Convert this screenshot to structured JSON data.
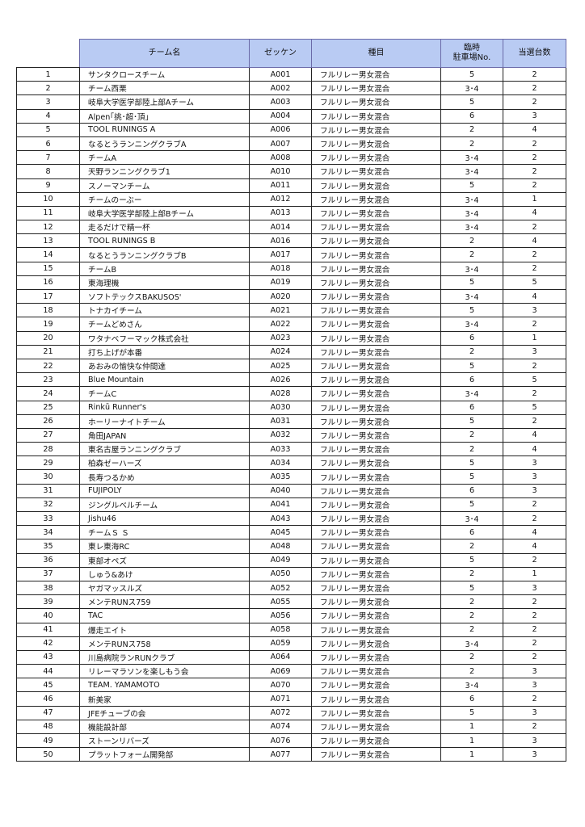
{
  "headers": {
    "no": "",
    "team": "チーム名",
    "bib": "ゼッケン",
    "category": "種目",
    "parking_line1": "臨時",
    "parking_line2": "駐車場No.",
    "count": "当選台数"
  },
  "rows": [
    [
      "1",
      "サンタクロースチーム",
      "A001",
      "フルリレー男女混合",
      "5",
      "2"
    ],
    [
      "2",
      "チーム西栗",
      "A002",
      "フルリレー男女混合",
      "3･4",
      "2"
    ],
    [
      "3",
      "岐阜大学医学部陸上部Aチーム",
      "A003",
      "フルリレー男女混合",
      "5",
      "2"
    ],
    [
      "4",
      "Alpen｢挑･超･頂｣",
      "A004",
      "フルリレー男女混合",
      "6",
      "3"
    ],
    [
      "5",
      "TOOL RUNINGS A",
      "A006",
      "フルリレー男女混合",
      "2",
      "4"
    ],
    [
      "6",
      "なるとうランニングクラブA",
      "A007",
      "フルリレー男女混合",
      "2",
      "2"
    ],
    [
      "7",
      "チームA",
      "A008",
      "フルリレー男女混合",
      "3･4",
      "2"
    ],
    [
      "8",
      "天野ランニングクラブ1",
      "A010",
      "フルリレー男女混合",
      "3･4",
      "2"
    ],
    [
      "9",
      "スノーマンチーム",
      "A011",
      "フルリレー男女混合",
      "5",
      "2"
    ],
    [
      "10",
      "チームのーぶー",
      "A012",
      "フルリレー男女混合",
      "3･4",
      "1"
    ],
    [
      "11",
      "岐阜大学医学部陸上部Bチーム",
      "A013",
      "フルリレー男女混合",
      "3･4",
      "4"
    ],
    [
      "12",
      "走るだけで精一杯",
      "A014",
      "フルリレー男女混合",
      "3･4",
      "2"
    ],
    [
      "13",
      "TOOL RUNINGS B",
      "A016",
      "フルリレー男女混合",
      "2",
      "4"
    ],
    [
      "14",
      "なるとうランニングクラブB",
      "A017",
      "フルリレー男女混合",
      "2",
      "2"
    ],
    [
      "15",
      "チームB",
      "A018",
      "フルリレー男女混合",
      "3･4",
      "2"
    ],
    [
      "16",
      "東海理機",
      "A019",
      "フルリレー男女混合",
      "5",
      "5"
    ],
    [
      "17",
      "ソフトテックスBAKUSOS'",
      "A020",
      "フルリレー男女混合",
      "3･4",
      "4"
    ],
    [
      "18",
      "トナカイチーム",
      "A021",
      "フルリレー男女混合",
      "5",
      "3"
    ],
    [
      "19",
      "チームどめさん",
      "A022",
      "フルリレー男女混合",
      "3･4",
      "2"
    ],
    [
      "20",
      "ワタナベフーマック株式会社",
      "A023",
      "フルリレー男女混合",
      "6",
      "1"
    ],
    [
      "21",
      "打ち上げが本番",
      "A024",
      "フルリレー男女混合",
      "2",
      "3"
    ],
    [
      "22",
      "あおみの愉快な仲間達",
      "A025",
      "フルリレー男女混合",
      "5",
      "2"
    ],
    [
      "23",
      "Blue Mountain",
      "A026",
      "フルリレー男女混合",
      "6",
      "5"
    ],
    [
      "24",
      "チームC",
      "A028",
      "フルリレー男女混合",
      "3･4",
      "2"
    ],
    [
      "25",
      "Rinkū Runner's",
      "A030",
      "フルリレー男女混合",
      "6",
      "5"
    ],
    [
      "26",
      "ホーリーナイトチーム",
      "A031",
      "フルリレー男女混合",
      "5",
      "2"
    ],
    [
      "27",
      "角田JAPAN",
      "A032",
      "フルリレー男女混合",
      "2",
      "4"
    ],
    [
      "28",
      "東名古屋ランニングクラブ",
      "A033",
      "フルリレー男女混合",
      "2",
      "4"
    ],
    [
      "29",
      "柏森ゼーハーズ",
      "A034",
      "フルリレー男女混合",
      "5",
      "3"
    ],
    [
      "30",
      "長寿つるかめ",
      "A035",
      "フルリレー男女混合",
      "5",
      "3"
    ],
    [
      "31",
      "FUJIPOLY",
      "A040",
      "フルリレー男女混合",
      "6",
      "3"
    ],
    [
      "32",
      "ジングルベルチーム",
      "A041",
      "フルリレー男女混合",
      "5",
      "2"
    ],
    [
      "33",
      "Jishu46",
      "A043",
      "フルリレー男女混合",
      "3･4",
      "2"
    ],
    [
      "34",
      "チームＳ Ｓ",
      "A045",
      "フルリレー男女混合",
      "6",
      "4"
    ],
    [
      "35",
      "東レ東海RC",
      "A048",
      "フルリレー男女混合",
      "2",
      "4"
    ],
    [
      "36",
      "東部オペズ",
      "A049",
      "フルリレー男女混合",
      "5",
      "2"
    ],
    [
      "37",
      "しゅう&あけ",
      "A050",
      "フルリレー男女混合",
      "2",
      "1"
    ],
    [
      "38",
      "ヤガマッスルズ",
      "A052",
      "フルリレー男女混合",
      "5",
      "3"
    ],
    [
      "39",
      "メンテRUNス759",
      "A055",
      "フルリレー男女混合",
      "2",
      "2"
    ],
    [
      "40",
      "TAC",
      "A056",
      "フルリレー男女混合",
      "2",
      "2"
    ],
    [
      "41",
      "爆走エイト",
      "A058",
      "フルリレー男女混合",
      "2",
      "2"
    ],
    [
      "42",
      "メンテRUNス758",
      "A059",
      "フルリレー男女混合",
      "3･4",
      "2"
    ],
    [
      "43",
      "川島病院ランRUNクラブ",
      "A064",
      "フルリレー男女混合",
      "2",
      "2"
    ],
    [
      "44",
      "リレーマラソンを楽しもう会",
      "A069",
      "フルリレー男女混合",
      "2",
      "3"
    ],
    [
      "45",
      "TEAM. YAMAMOTO",
      "A070",
      "フルリレー男女混合",
      "3･4",
      "3"
    ],
    [
      "46",
      "新美家",
      "A071",
      "フルリレー男女混合",
      "6",
      "2"
    ],
    [
      "47",
      "JFEチューブの会",
      "A072",
      "フルリレー男女混合",
      "5",
      "3"
    ],
    [
      "48",
      "機能設計部",
      "A074",
      "フルリレー男女混合",
      "1",
      "2"
    ],
    [
      "49",
      "ストーンリバーズ",
      "A076",
      "フルリレー男女混合",
      "1",
      "3"
    ],
    [
      "50",
      "プラットフォーム開発部",
      "A077",
      "フルリレー男女混合",
      "1",
      "3"
    ]
  ]
}
